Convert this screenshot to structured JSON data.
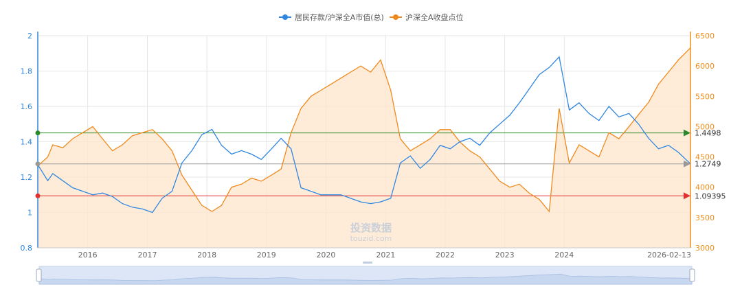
{
  "colors": {
    "left_axis": "#2e86de",
    "right_axis": "#f08c1a",
    "series_a": "#2f86e0",
    "series_b": "#f0891d",
    "area_fill": "#fde6cc",
    "ref_green": "#2a8a2a",
    "ref_gray": "#999999",
    "ref_red": "#e03030",
    "grid": "#e6e6e6"
  },
  "watermark": {
    "cn": "投资数据",
    "url": "touzid.com"
  },
  "chart_data": {
    "type": "line",
    "x_start": "2015-03",
    "x_end": "2026-02-13",
    "x_ticks": [
      "2016",
      "2017",
      "2018",
      "2019",
      "2020",
      "2021",
      "2022",
      "2023",
      "2024",
      "2026-02-13"
    ],
    "x_tick_dates": [
      "2016-01-01",
      "2017-01-01",
      "2018-01-01",
      "2019-01-01",
      "2020-01-01",
      "2021-01-01",
      "2022-01-01",
      "2023-01-01",
      "2024-01-01",
      "2026-02-13"
    ],
    "y_left": {
      "min": 0.8,
      "max": 2.0,
      "ticks": [
        "0.8",
        "1",
        "1.2",
        "1.4",
        "1.6",
        "1.8",
        "2"
      ]
    },
    "y_right": {
      "min": 3000,
      "max": 6500,
      "ticks": [
        "3000",
        "3500",
        "4000",
        "4500",
        "5000",
        "5500",
        "6000",
        "6500"
      ]
    },
    "legend": [
      "居民存款/沪深全A市值(总)",
      "沪深全A收盘点位"
    ],
    "series": [
      {
        "name": "居民存款/沪深全A市值(总)",
        "axis": "left",
        "x": [
          "2015-03",
          "2015-05",
          "2015-06",
          "2015-08",
          "2015-10",
          "2015-12",
          "2016-02",
          "2016-04",
          "2016-06",
          "2016-08",
          "2016-10",
          "2016-12",
          "2017-02",
          "2017-04",
          "2017-06",
          "2017-08",
          "2017-10",
          "2017-12",
          "2018-02",
          "2018-04",
          "2018-06",
          "2018-08",
          "2018-10",
          "2018-12",
          "2019-02",
          "2019-04",
          "2019-06",
          "2019-08",
          "2019-10",
          "2019-12",
          "2020-02",
          "2020-04",
          "2020-06",
          "2020-08",
          "2020-10",
          "2020-12",
          "2021-02",
          "2021-04",
          "2021-06",
          "2021-08",
          "2021-10",
          "2021-12",
          "2022-02",
          "2022-04",
          "2022-06",
          "2022-08",
          "2022-10",
          "2022-12",
          "2023-02",
          "2023-04",
          "2023-06",
          "2023-08",
          "2023-10",
          "2023-12",
          "2024-02",
          "2024-04",
          "2024-06",
          "2024-08",
          "2024-10",
          "2024-12",
          "2025-02",
          "2025-04",
          "2025-06",
          "2025-08",
          "2025-10",
          "2025-12",
          "2026-02-13"
        ],
        "values": [
          1.27,
          1.18,
          1.22,
          1.18,
          1.14,
          1.12,
          1.1,
          1.11,
          1.09,
          1.05,
          1.03,
          1.02,
          1.0,
          1.08,
          1.12,
          1.28,
          1.35,
          1.44,
          1.47,
          1.38,
          1.33,
          1.35,
          1.33,
          1.3,
          1.36,
          1.42,
          1.36,
          1.14,
          1.12,
          1.1,
          1.1,
          1.1,
          1.08,
          1.06,
          1.05,
          1.06,
          1.08,
          1.28,
          1.32,
          1.25,
          1.3,
          1.38,
          1.36,
          1.4,
          1.42,
          1.38,
          1.45,
          1.5,
          1.55,
          1.62,
          1.7,
          1.78,
          1.82,
          1.88,
          1.58,
          1.62,
          1.56,
          1.52,
          1.6,
          1.54,
          1.56,
          1.5,
          1.42,
          1.36,
          1.38,
          1.34,
          1.2749
        ]
      },
      {
        "name": "沪深全A收盘点位",
        "axis": "right",
        "x": [
          "2015-03",
          "2015-05",
          "2015-06",
          "2015-08",
          "2015-10",
          "2015-12",
          "2016-02",
          "2016-04",
          "2016-06",
          "2016-08",
          "2016-10",
          "2016-12",
          "2017-02",
          "2017-04",
          "2017-06",
          "2017-08",
          "2017-10",
          "2017-12",
          "2018-02",
          "2018-04",
          "2018-06",
          "2018-08",
          "2018-10",
          "2018-12",
          "2019-02",
          "2019-04",
          "2019-06",
          "2019-08",
          "2019-10",
          "2019-12",
          "2020-02",
          "2020-04",
          "2020-06",
          "2020-08",
          "2020-10",
          "2020-12",
          "2021-02",
          "2021-04",
          "2021-06",
          "2021-08",
          "2021-10",
          "2021-12",
          "2022-02",
          "2022-04",
          "2022-06",
          "2022-08",
          "2022-10",
          "2022-12",
          "2023-02",
          "2023-04",
          "2023-06",
          "2023-08",
          "2023-10",
          "2023-12",
          "2024-02",
          "2024-04",
          "2024-06",
          "2024-08",
          "2024-10",
          "2024-12",
          "2025-02",
          "2025-04",
          "2025-06",
          "2025-08",
          "2025-10",
          "2025-12",
          "2026-02-13"
        ],
        "values": [
          4350,
          4500,
          4700,
          4650,
          4800,
          4900,
          5000,
          4800,
          4600,
          4700,
          4850,
          4900,
          4950,
          4800,
          4600,
          4200,
          3950,
          3700,
          3600,
          3700,
          4000,
          4050,
          4150,
          4100,
          4200,
          4300,
          4900,
          5300,
          5500,
          5600,
          5700,
          5800,
          5900,
          6000,
          5900,
          6100,
          5600,
          4800,
          4600,
          4700,
          4800,
          4950,
          4950,
          4750,
          4600,
          4500,
          4300,
          4100,
          4000,
          4050,
          3900,
          3800,
          3600,
          5300,
          4400,
          4700,
          4600,
          4500,
          4900,
          4800,
          5000,
          5200,
          5400,
          5700,
          5900,
          6100,
          6300
        ]
      }
    ],
    "reference_lines": [
      {
        "label": "1.4498",
        "value": 1.4498,
        "axis": "left"
      },
      {
        "label": "1.2749",
        "value": 1.2749,
        "axis": "left"
      },
      {
        "label": "1.09395",
        "value": 1.09395,
        "axis": "left"
      }
    ]
  }
}
